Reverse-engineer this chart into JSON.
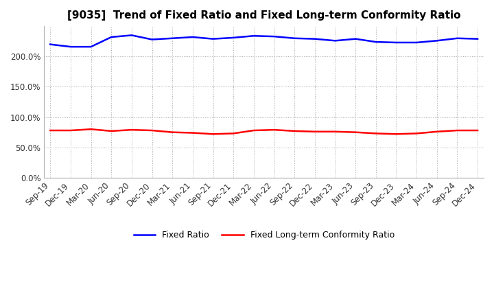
{
  "title": "[9035]  Trend of Fixed Ratio and Fixed Long-term Conformity Ratio",
  "x_labels": [
    "Sep-19",
    "Dec-19",
    "Mar-20",
    "Jun-20",
    "Sep-20",
    "Dec-20",
    "Mar-21",
    "Jun-21",
    "Sep-21",
    "Dec-21",
    "Mar-22",
    "Jun-22",
    "Sep-22",
    "Dec-22",
    "Mar-23",
    "Jun-23",
    "Sep-23",
    "Dec-23",
    "Mar-24",
    "Jun-24",
    "Sep-24",
    "Dec-24"
  ],
  "fixed_ratio": [
    220,
    216,
    216,
    232,
    235,
    228,
    230,
    232,
    229,
    231,
    234,
    233,
    230,
    229,
    226,
    229,
    224,
    223,
    223,
    226,
    230,
    229
  ],
  "fixed_lt_ratio": [
    78,
    78,
    80,
    77,
    79,
    78,
    75,
    74,
    72,
    73,
    78,
    79,
    77,
    76,
    76,
    75,
    73,
    72,
    73,
    76,
    78,
    78
  ],
  "fixed_ratio_color": "#0000FF",
  "fixed_lt_ratio_color": "#FF0000",
  "background_color": "#FFFFFF",
  "plot_bg_color": "#FFFFFF",
  "grid_color": "#AAAAAA",
  "ylim": [
    0,
    250
  ],
  "yticks": [
    0,
    50,
    100,
    150,
    200
  ],
  "legend_labels": [
    "Fixed Ratio",
    "Fixed Long-term Conformity Ratio"
  ],
  "line_width": 1.8,
  "title_fontsize": 11
}
